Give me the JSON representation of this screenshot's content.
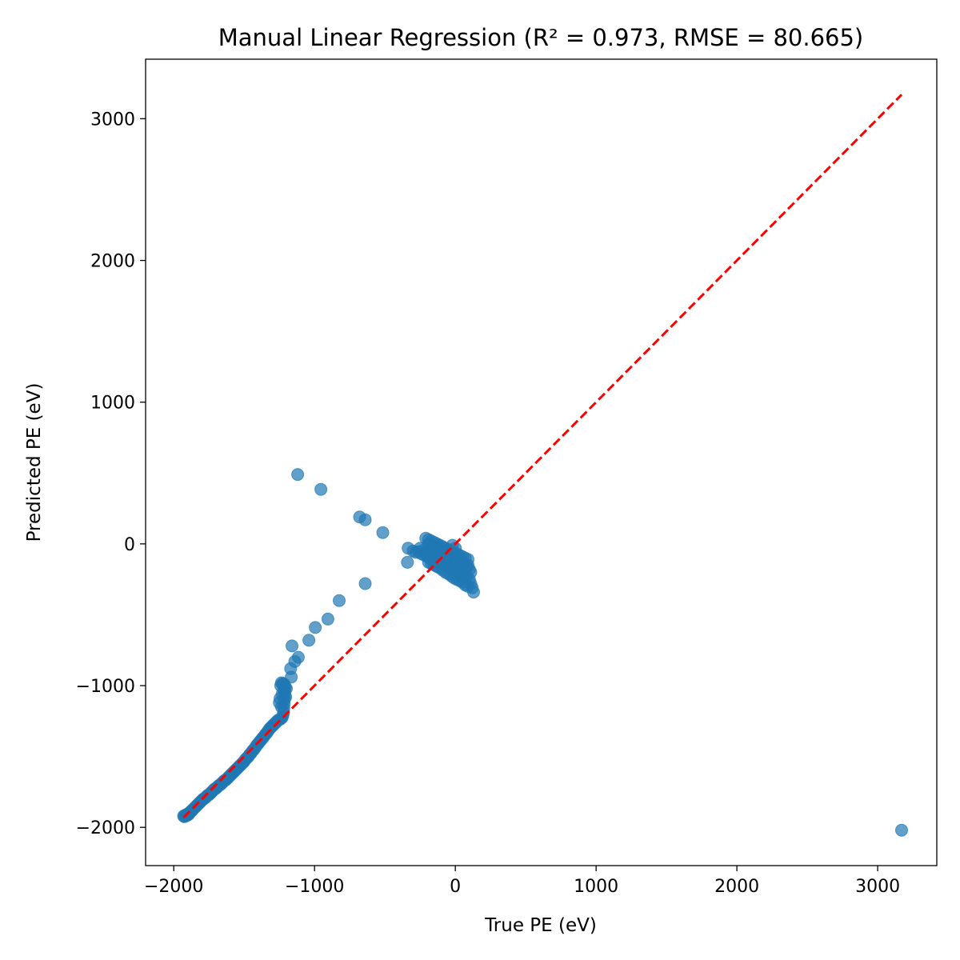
{
  "chart_data": {
    "type": "scatter",
    "title": "Manual Linear Regression (R² = 0.973, RMSE = 80.665)",
    "xlabel": "True PE (eV)",
    "ylabel": "Predicted PE (eV)",
    "xlim": [
      -2200,
      3420
    ],
    "ylim": [
      -2270,
      3420
    ],
    "grid": false,
    "x_ticks": [
      {
        "value": -2000,
        "label": "−2000"
      },
      {
        "value": -1000,
        "label": "−1000"
      },
      {
        "value": 0,
        "label": "0"
      },
      {
        "value": 1000,
        "label": "1000"
      },
      {
        "value": 2000,
        "label": "2000"
      },
      {
        "value": 3000,
        "label": "3000"
      }
    ],
    "y_ticks": [
      {
        "value": -2000,
        "label": "−2000"
      },
      {
        "value": -1000,
        "label": "−1000"
      },
      {
        "value": 0,
        "label": "0"
      },
      {
        "value": 1000,
        "label": "1000"
      },
      {
        "value": 2000,
        "label": "2000"
      },
      {
        "value": 3000,
        "label": "3000"
      }
    ],
    "reference_line": {
      "x": [
        -1930,
        3170
      ],
      "y": [
        -1930,
        3170
      ],
      "color": "#ff0000",
      "style": "dashed"
    },
    "point_color": "#1f77b4",
    "points": [
      [
        -1930,
        -1920
      ],
      [
        -1925,
        -1925
      ],
      [
        -1920,
        -1915
      ],
      [
        -1915,
        -1920
      ],
      [
        -1910,
        -1910
      ],
      [
        -1905,
        -1915
      ],
      [
        -1900,
        -1905
      ],
      [
        -1895,
        -1910
      ],
      [
        -1890,
        -1900
      ],
      [
        -1885,
        -1895
      ],
      [
        -1880,
        -1890
      ],
      [
        -1875,
        -1885
      ],
      [
        -1870,
        -1880
      ],
      [
        -1860,
        -1870
      ],
      [
        -1850,
        -1860
      ],
      [
        -1840,
        -1850
      ],
      [
        -1830,
        -1840
      ],
      [
        -1820,
        -1830
      ],
      [
        -1810,
        -1820
      ],
      [
        -1800,
        -1810
      ],
      [
        -1790,
        -1800
      ],
      [
        -1780,
        -1795
      ],
      [
        -1770,
        -1785
      ],
      [
        -1760,
        -1775
      ],
      [
        -1750,
        -1770
      ],
      [
        -1740,
        -1760
      ],
      [
        -1730,
        -1750
      ],
      [
        -1720,
        -1740
      ],
      [
        -1710,
        -1730
      ],
      [
        -1700,
        -1725
      ],
      [
        -1690,
        -1715
      ],
      [
        -1680,
        -1705
      ],
      [
        -1670,
        -1700
      ],
      [
        -1660,
        -1690
      ],
      [
        -1650,
        -1680
      ],
      [
        -1640,
        -1670
      ],
      [
        -1630,
        -1665
      ],
      [
        -1620,
        -1655
      ],
      [
        -1610,
        -1645
      ],
      [
        -1600,
        -1635
      ],
      [
        -1590,
        -1625
      ],
      [
        -1580,
        -1615
      ],
      [
        -1570,
        -1605
      ],
      [
        -1560,
        -1595
      ],
      [
        -1550,
        -1585
      ],
      [
        -1540,
        -1575
      ],
      [
        -1530,
        -1565
      ],
      [
        -1520,
        -1555
      ],
      [
        -1510,
        -1545
      ],
      [
        -1500,
        -1535
      ],
      [
        -1490,
        -1520
      ],
      [
        -1480,
        -1510
      ],
      [
        -1470,
        -1500
      ],
      [
        -1460,
        -1485
      ],
      [
        -1450,
        -1475
      ],
      [
        -1440,
        -1460
      ],
      [
        -1430,
        -1450
      ],
      [
        -1420,
        -1435
      ],
      [
        -1410,
        -1420
      ],
      [
        -1400,
        -1410
      ],
      [
        -1390,
        -1395
      ],
      [
        -1380,
        -1385
      ],
      [
        -1370,
        -1370
      ],
      [
        -1360,
        -1360
      ],
      [
        -1350,
        -1345
      ],
      [
        -1340,
        -1335
      ],
      [
        -1330,
        -1320
      ],
      [
        -1320,
        -1305
      ],
      [
        -1310,
        -1295
      ],
      [
        -1300,
        -1285
      ],
      [
        -1290,
        -1275
      ],
      [
        -1280,
        -1265
      ],
      [
        -1270,
        -1255
      ],
      [
        -1260,
        -1245
      ],
      [
        -1250,
        -1240
      ],
      [
        -1240,
        -1235
      ],
      [
        -1230,
        -1225
      ],
      [
        -1225,
        -1210
      ],
      [
        -1220,
        -1190
      ],
      [
        -1218,
        -1160
      ],
      [
        -1216,
        -1130
      ],
      [
        -1214,
        -1100
      ],
      [
        -1212,
        -1070
      ],
      [
        -1210,
        -1040
      ],
      [
        -1208,
        -1010
      ],
      [
        -1215,
        -990
      ],
      [
        -1225,
        -985
      ],
      [
        -1235,
        -980
      ],
      [
        -1240,
        -1000
      ],
      [
        -1220,
        -1030
      ],
      [
        -1230,
        -1060
      ],
      [
        -1200,
        -1020
      ],
      [
        -1205,
        -1080
      ],
      [
        -1245,
        -1090
      ],
      [
        -1250,
        -1120
      ],
      [
        -1235,
        -1150
      ],
      [
        -1165,
        -940
      ],
      [
        -1140,
        -830
      ],
      [
        -1115,
        -800
      ],
      [
        -1160,
        -720
      ],
      [
        -1170,
        -880
      ],
      [
        -995,
        -590
      ],
      [
        -1040,
        -680
      ],
      [
        -905,
        -530
      ],
      [
        -825,
        -400
      ],
      [
        -640,
        -280
      ],
      [
        -1120,
        490
      ],
      [
        -955,
        385
      ],
      [
        -680,
        190
      ],
      [
        -640,
        170
      ],
      [
        -515,
        80
      ],
      [
        -335,
        -30
      ],
      [
        -340,
        -130
      ],
      [
        -300,
        -50
      ],
      [
        -280,
        -60
      ],
      [
        -260,
        -55
      ],
      [
        -240,
        -70
      ],
      [
        -220,
        -80
      ],
      [
        -200,
        -90
      ],
      [
        -210,
        40
      ],
      [
        -190,
        30
      ],
      [
        -170,
        20
      ],
      [
        -150,
        10
      ],
      [
        -130,
        0
      ],
      [
        -110,
        -10
      ],
      [
        -90,
        -20
      ],
      [
        -70,
        -30
      ],
      [
        -50,
        -40
      ],
      [
        -30,
        -50
      ],
      [
        -10,
        -60
      ],
      [
        10,
        -70
      ],
      [
        30,
        -80
      ],
      [
        50,
        -90
      ],
      [
        70,
        -100
      ],
      [
        90,
        -110
      ],
      [
        -180,
        -100
      ],
      [
        -160,
        -110
      ],
      [
        -140,
        -120
      ],
      [
        -120,
        -130
      ],
      [
        -100,
        -140
      ],
      [
        -80,
        -150
      ],
      [
        -60,
        -160
      ],
      [
        -40,
        -170
      ],
      [
        -20,
        -180
      ],
      [
        0,
        -190
      ],
      [
        20,
        -200
      ],
      [
        40,
        -210
      ],
      [
        60,
        -220
      ],
      [
        80,
        -230
      ],
      [
        100,
        -250
      ],
      [
        110,
        -280
      ],
      [
        120,
        -310
      ],
      [
        130,
        -340
      ],
      [
        90,
        -300
      ],
      [
        70,
        -290
      ],
      [
        50,
        -270
      ],
      [
        30,
        -260
      ],
      [
        10,
        -250
      ],
      [
        -10,
        -240
      ],
      [
        -30,
        -225
      ],
      [
        -50,
        -210
      ],
      [
        -70,
        -200
      ],
      [
        -90,
        -185
      ],
      [
        -110,
        -170
      ],
      [
        -130,
        -160
      ],
      [
        -150,
        -150
      ],
      [
        -170,
        -140
      ],
      [
        -190,
        -130
      ],
      [
        -200,
        -50
      ],
      [
        -160,
        -30
      ],
      [
        -120,
        -40
      ],
      [
        -80,
        -60
      ],
      [
        -40,
        -80
      ],
      [
        0,
        -100
      ],
      [
        40,
        -120
      ],
      [
        60,
        -140
      ],
      [
        80,
        -160
      ],
      [
        100,
        -180
      ],
      [
        70,
        -200
      ],
      [
        40,
        -230
      ],
      [
        20,
        -150
      ],
      [
        -20,
        -130
      ],
      [
        -60,
        -110
      ],
      [
        -100,
        -80
      ],
      [
        -140,
        -60
      ],
      [
        -180,
        -60
      ],
      [
        -220,
        -40
      ],
      [
        -250,
        -30
      ],
      [
        -190,
        0
      ],
      [
        -150,
        -20
      ],
      [
        -110,
        -30
      ],
      [
        -70,
        -50
      ],
      [
        -30,
        -70
      ],
      [
        10,
        -90
      ],
      [
        50,
        -130
      ],
      [
        90,
        -150
      ],
      [
        110,
        -200
      ],
      [
        0,
        -30
      ],
      [
        -20,
        -10
      ],
      [
        3170,
        -2020
      ]
    ]
  }
}
